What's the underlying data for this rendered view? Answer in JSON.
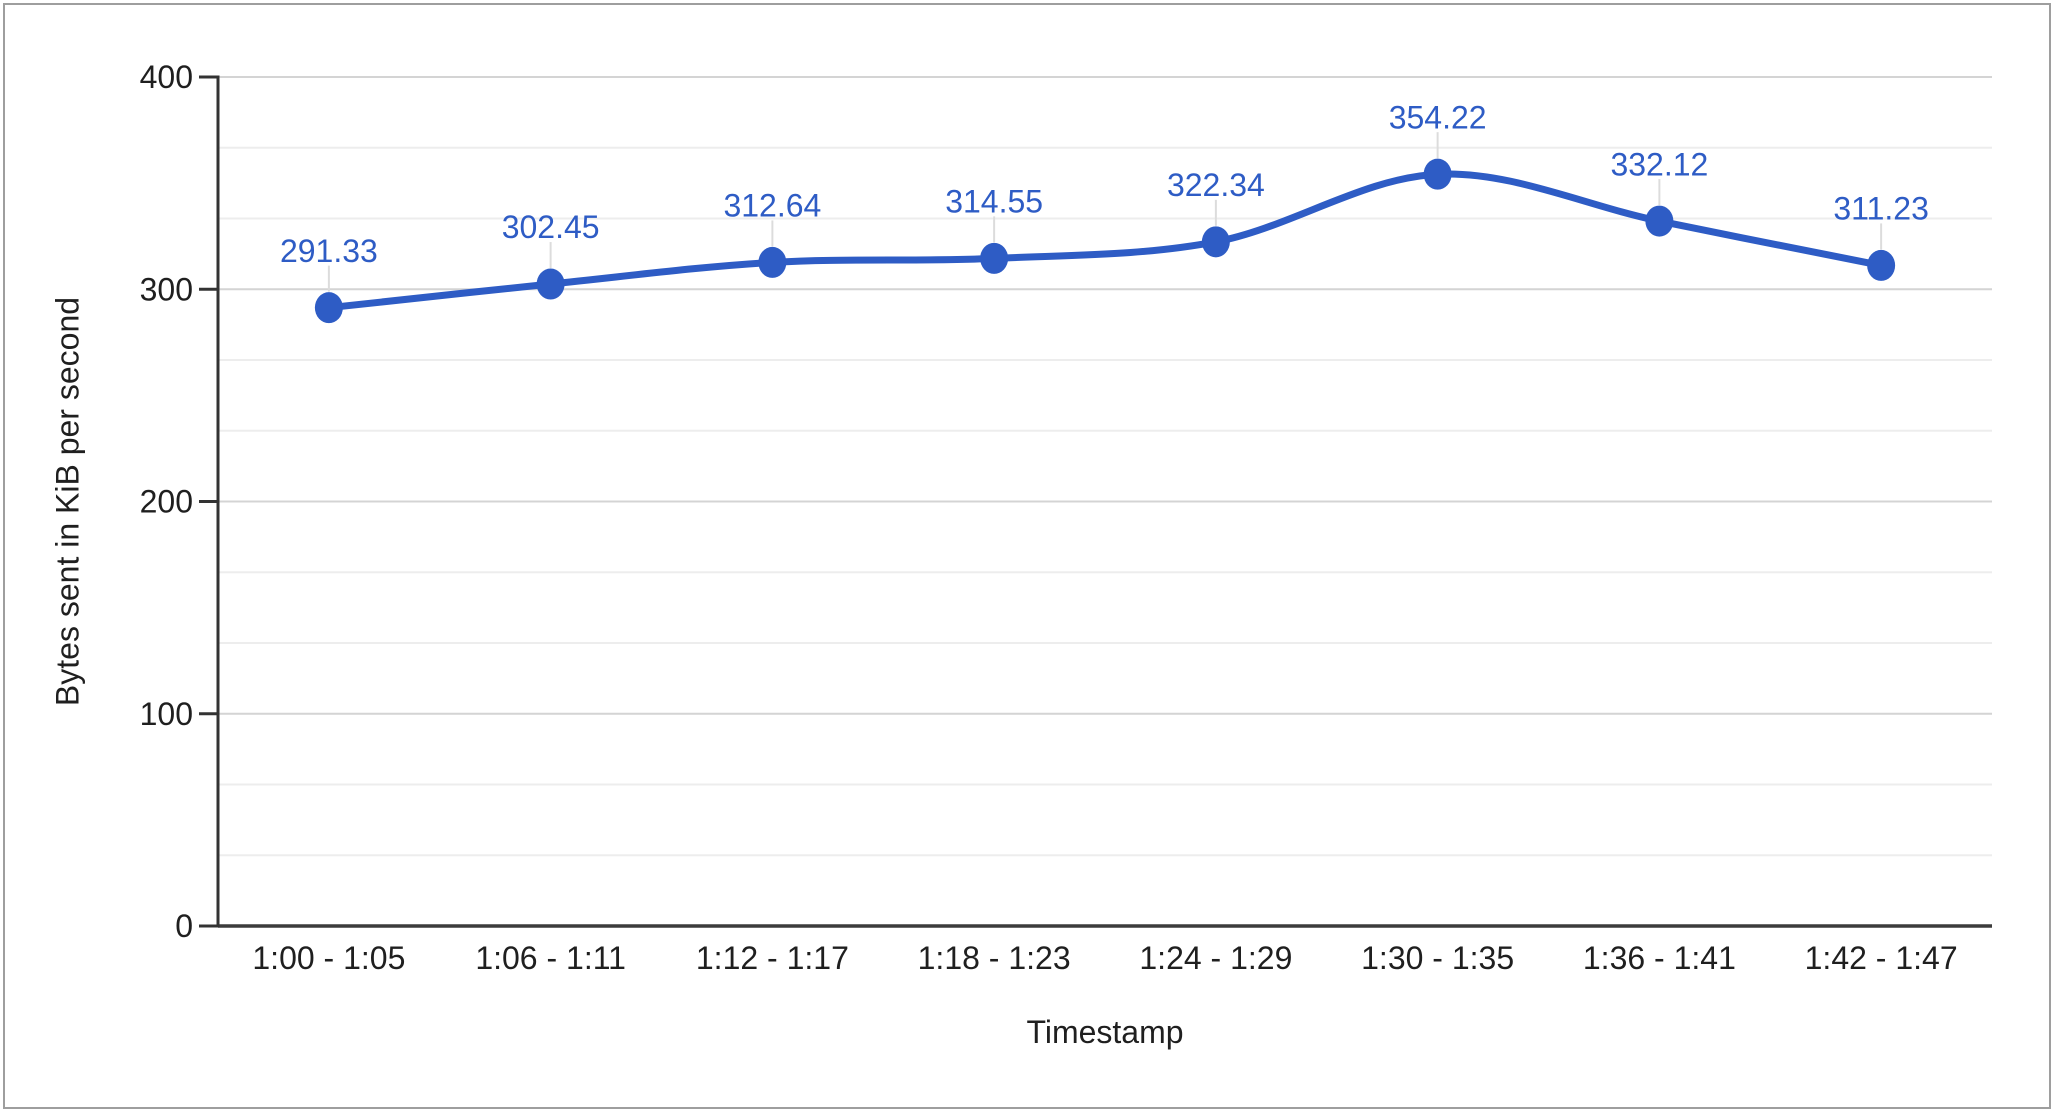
{
  "chart_data": {
    "type": "line",
    "title": "",
    "categories": [
      "1:00 - 1:05",
      "1:06 - 1:11",
      "1:12 - 1:17",
      "1:18 - 1:23",
      "1:24 - 1:29",
      "1:30 - 1:35",
      "1:36 - 1:41",
      "1:42 - 1:47"
    ],
    "values": [
      291.33,
      302.45,
      312.64,
      314.55,
      322.34,
      354.22,
      332.12,
      311.23
    ],
    "point_labels": [
      "291.33",
      "302.45",
      "312.64",
      "314.55",
      "322.34",
      "354.22",
      "332.12",
      "311.23"
    ],
    "xlabel": "Timestamp",
    "ylabel": "Bytes sent in KiB per second",
    "ylim": [
      0,
      400
    ],
    "yticks": [
      0,
      100,
      200,
      300,
      400
    ],
    "minor_gridlines_between_major": 2,
    "grid": true,
    "legend": "none",
    "line_smoothing": true,
    "markers": true
  },
  "colors": {
    "series": "#2e5cc5",
    "annotation_text": "#2e5cc5",
    "annotation_stem": "#dcdcdc",
    "gridline_major": "#d4d4d4",
    "gridline_minor": "#ededed",
    "axis_line": "#333333",
    "baseline": "#3c3c3c",
    "axis_text": "#1f1f1f",
    "background": "#ffffff",
    "frame_border": "#9e9e9e"
  }
}
